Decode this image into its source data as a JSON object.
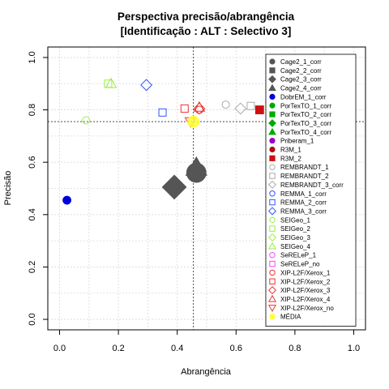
{
  "chart_data": {
    "type": "scatter",
    "title": "Perspectiva precisão/abrangência",
    "subtitle": "[Identificação : ALT : Selectivo 3]",
    "xlabel": "Abrangência",
    "ylabel": "Precisão",
    "xlim": [
      0,
      1
    ],
    "ylim": [
      0,
      1
    ],
    "xticks": [
      "0.0",
      "0.2",
      "0.4",
      "0.6",
      "0.8",
      "1.0"
    ],
    "yticks": [
      "0.0",
      "0.2",
      "0.4",
      "0.6",
      "0.8",
      "1.0"
    ],
    "grid": true,
    "legend_position": "right",
    "reference_lines": {
      "x": 0.455,
      "y": 0.755
    },
    "series": [
      {
        "name": "Cage2_1_corr",
        "shape": "circle",
        "color": "#555555",
        "filled": true,
        "size": 12,
        "x": 0.465,
        "y": 0.56
      },
      {
        "name": "Cage2_2_corr",
        "shape": "square",
        "color": "#555555",
        "filled": true,
        "size": 6
      },
      {
        "name": "Cage2_3_corr",
        "shape": "diamond",
        "color": "#555555",
        "filled": true,
        "size": 11,
        "x": 0.39,
        "y": 0.505
      },
      {
        "name": "Cage2_4_corr",
        "shape": "triangle",
        "color": "#555555",
        "filled": true,
        "size": 10,
        "x": 0.465,
        "y": 0.58
      },
      {
        "name": "DobrEM_1_corr",
        "shape": "circle",
        "color": "#0000dd",
        "filled": true,
        "size": 5,
        "x": 0.025,
        "y": 0.455
      },
      {
        "name": "PorTexTO_1_corr",
        "shape": "circle",
        "color": "#00aa00",
        "filled": true,
        "size": 4
      },
      {
        "name": "PorTexTO_2_corr",
        "shape": "square",
        "color": "#00aa00",
        "filled": true,
        "size": 4
      },
      {
        "name": "PorTexTO_3_corr",
        "shape": "diamond",
        "color": "#00aa00",
        "filled": true,
        "size": 4
      },
      {
        "name": "PorTexTO_4_corr",
        "shape": "triangle",
        "color": "#00aa00",
        "filled": true,
        "size": 4
      },
      {
        "name": "Priberam_1",
        "shape": "circle",
        "color": "#9900cc",
        "filled": true,
        "size": 4
      },
      {
        "name": "R3M_1",
        "shape": "circle",
        "color": "#aa1111",
        "filled": true,
        "size": 4
      },
      {
        "name": "R3M_2",
        "shape": "square",
        "color": "#cc1111",
        "filled": true,
        "size": 5,
        "x": 0.68,
        "y": 0.8
      },
      {
        "name": "REMBRANDT_1",
        "shape": "circle",
        "color": "#aaaaaa",
        "filled": false,
        "size": 4.5,
        "x": 0.565,
        "y": 0.82
      },
      {
        "name": "REMBRANDT_2",
        "shape": "square",
        "color": "#aaaaaa",
        "filled": false,
        "size": 4.5,
        "x": 0.65,
        "y": 0.815
      },
      {
        "name": "REMBRANDT_3_corr",
        "shape": "diamond",
        "color": "#aaaaaa",
        "filled": false,
        "size": 5,
        "x": 0.615,
        "y": 0.805
      },
      {
        "name": "REMMA_1_corr",
        "shape": "circle",
        "color": "#3355ff",
        "filled": false,
        "size": 4.5
      },
      {
        "name": "REMMA_2_corr",
        "shape": "square",
        "color": "#3355ff",
        "filled": false,
        "size": 4.5,
        "x": 0.35,
        "y": 0.79
      },
      {
        "name": "REMMA_3_corr",
        "shape": "diamond",
        "color": "#3355ff",
        "filled": false,
        "size": 5,
        "x": 0.295,
        "y": 0.895
      },
      {
        "name": "SEIGeo_1",
        "shape": "circle",
        "color": "#99ee44",
        "filled": false,
        "size": 4.5,
        "x": 0.09,
        "y": 0.76
      },
      {
        "name": "SEIGeo_2",
        "shape": "square",
        "color": "#99ee44",
        "filled": false,
        "size": 4.5,
        "x": 0.165,
        "y": 0.9
      },
      {
        "name": "SEIGeo_3",
        "shape": "diamond",
        "color": "#99ee44",
        "filled": false,
        "size": 5
      },
      {
        "name": "SEIGeo_4",
        "shape": "triangle",
        "color": "#99ee44",
        "filled": false,
        "size": 5,
        "x": 0.175,
        "y": 0.9
      },
      {
        "name": "SeRELeP_1",
        "shape": "circle",
        "color": "#ff44ff",
        "filled": false,
        "size": 4.5
      },
      {
        "name": "SeRELeP_no",
        "shape": "square",
        "color": "#ff44ff",
        "filled": false,
        "size": 4.5
      },
      {
        "name": "XIP-L2F/Xerox_1",
        "shape": "circle",
        "color": "#ee3333",
        "filled": false,
        "size": 4.5,
        "x": 0.475,
        "y": 0.8
      },
      {
        "name": "XIP-L2F/Xerox_2",
        "shape": "square",
        "color": "#ee3333",
        "filled": false,
        "size": 4.5,
        "x": 0.425,
        "y": 0.805
      },
      {
        "name": "XIP-L2F/Xerox_3",
        "shape": "diamond",
        "color": "#ee3333",
        "filled": false,
        "size": 5,
        "x": 0.475,
        "y": 0.805
      },
      {
        "name": "XIP-L2F/Xerox_4",
        "shape": "triangle",
        "color": "#ee3333",
        "filled": false,
        "size": 5,
        "x": 0.475,
        "y": 0.81
      },
      {
        "name": "XIP-L2F/Xerox_no",
        "shape": "triangle-down",
        "color": "#ee3333",
        "filled": false,
        "size": 5,
        "x": 0.445,
        "y": 0.755
      },
      {
        "name": "MÉDIA",
        "shape": "circle",
        "color": "#ffff33",
        "filled": true,
        "size": 7,
        "x": 0.455,
        "y": 0.755
      }
    ]
  }
}
